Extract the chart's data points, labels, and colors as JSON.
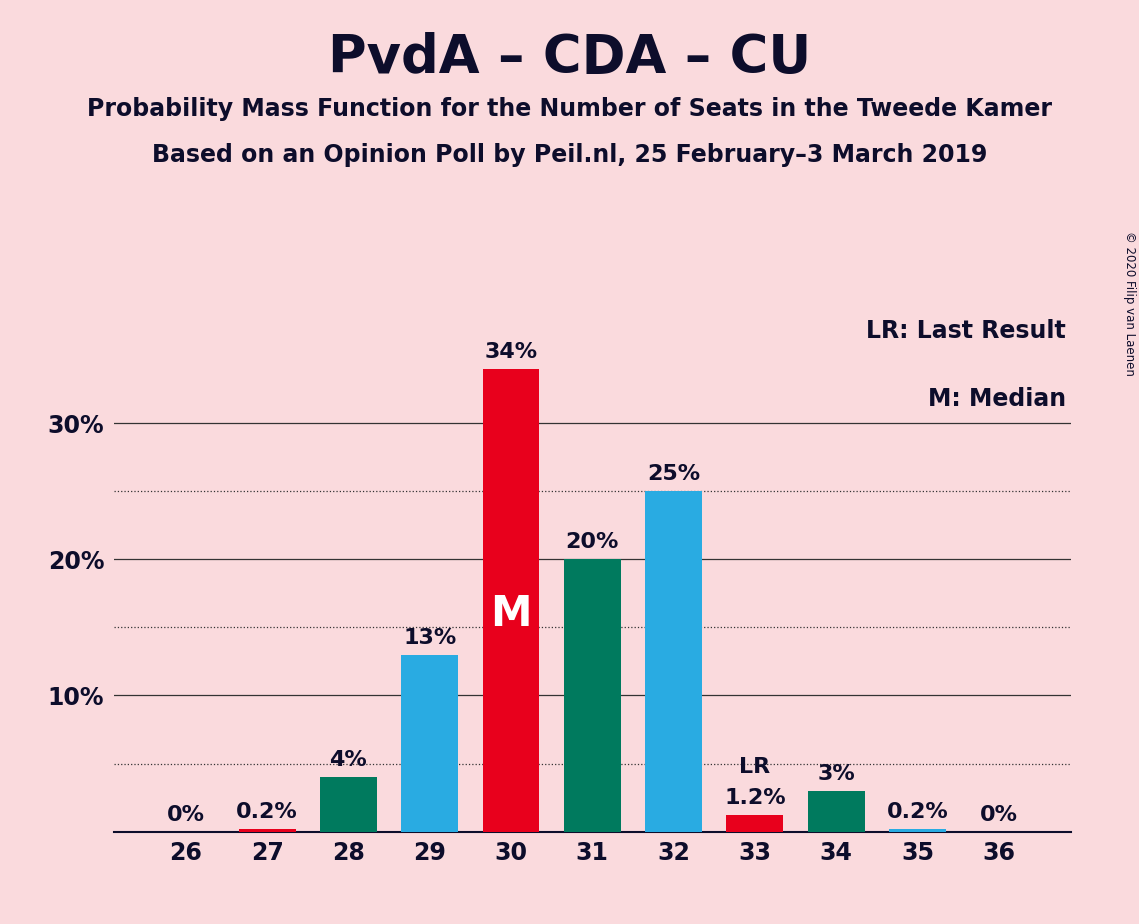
{
  "title": "PvdA – CDA – CU",
  "subtitle1": "Probability Mass Function for the Number of Seats in the Tweede Kamer",
  "subtitle2": "Based on an Opinion Poll by Peil.nl, 25 February–3 March 2019",
  "copyright": "© 2020 Filip van Laenen",
  "legend_lr": "LR: Last Result",
  "legend_m": "M: Median",
  "categories": [
    26,
    27,
    28,
    29,
    30,
    31,
    32,
    33,
    34,
    35,
    36
  ],
  "values": [
    0.0,
    0.2,
    4.0,
    13.0,
    34.0,
    20.0,
    25.0,
    1.2,
    3.0,
    0.2,
    0.0
  ],
  "labels": [
    "0%",
    "0.2%",
    "4%",
    "13%",
    "34%",
    "20%",
    "25%",
    "1.2%",
    "3%",
    "0.2%",
    "0%"
  ],
  "bar_colors": [
    "#29ABE2",
    "#E8001C",
    "#007A5E",
    "#29ABE2",
    "#E8001C",
    "#007A5E",
    "#29ABE2",
    "#E8001C",
    "#007A5E",
    "#29ABE2",
    "#29ABE2"
  ],
  "median_bar": 30,
  "lr_bar": 33,
  "background_color": "#FADADD",
  "ylim": [
    0,
    38
  ],
  "yticks": [
    0,
    10,
    20,
    30
  ],
  "ytick_labels": [
    "",
    "10%",
    "20%",
    "30%"
  ],
  "grid_solid_values": [
    10,
    20,
    30
  ],
  "grid_dotted_values": [
    5,
    15,
    25
  ],
  "title_fontsize": 38,
  "subtitle_fontsize": 17,
  "label_fontsize": 16,
  "tick_fontsize": 17,
  "legend_fontsize": 17,
  "median_label": "M",
  "lr_label": "LR",
  "median_label_fontsize": 30
}
